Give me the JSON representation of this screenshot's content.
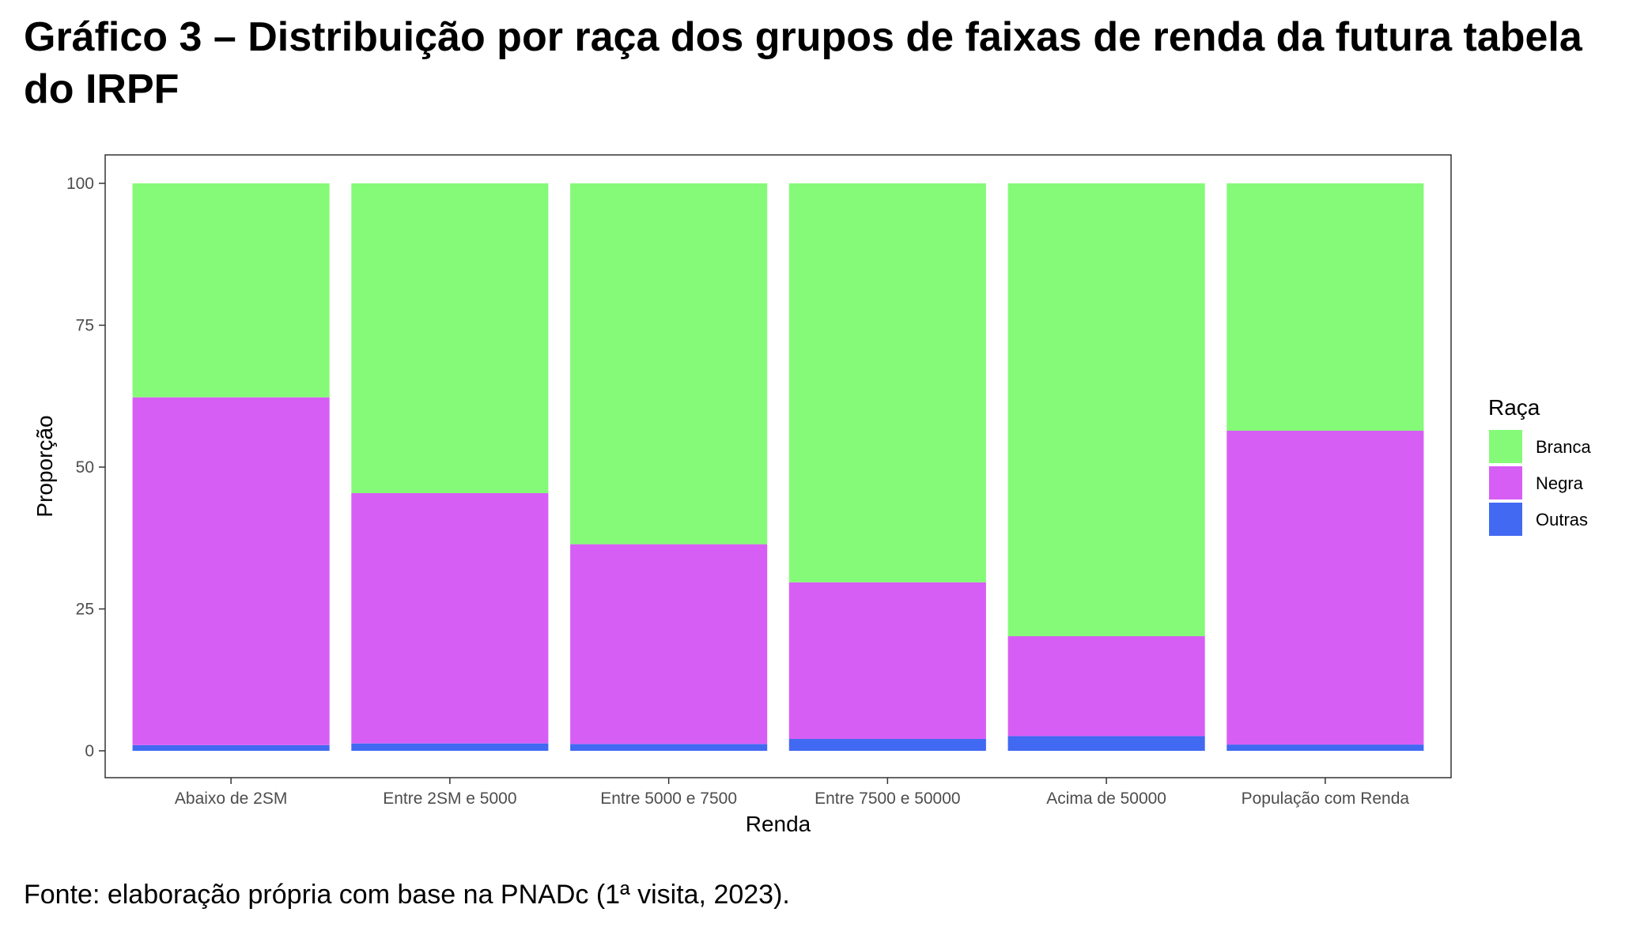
{
  "title": "Gráfico 3 – Distribuição por raça dos grupos de faixas de renda da futura tabela do IRPF",
  "source": "Fonte: elaboração própria com base na PNADc (1ª visita, 2023).",
  "colors": {
    "Branca": "#85fa78",
    "Negra": "#d75ef5",
    "Outras": "#4169f2"
  },
  "chart_data": {
    "type": "bar",
    "stacked": true,
    "categories": [
      "Abaixo de 2SM",
      "Entre 2SM e 5000",
      "Entre 5000 e 7500",
      "Entre 7500 e 50000",
      "Acima de 50000",
      "População com Renda"
    ],
    "series": [
      {
        "name": "Outras",
        "values": [
          1.0,
          1.3,
          1.2,
          2.1,
          2.6,
          1.1
        ]
      },
      {
        "name": "Negra",
        "values": [
          61.3,
          44.1,
          35.2,
          27.6,
          17.6,
          55.3
        ]
      },
      {
        "name": "Branca",
        "values": [
          37.7,
          54.6,
          63.6,
          70.3,
          79.8,
          43.6
        ]
      }
    ],
    "xlabel": "Renda",
    "ylabel": "Proporção",
    "ylim": [
      0,
      100
    ],
    "yticks": [
      0,
      25,
      50,
      75,
      100
    ],
    "legend": {
      "title": "Raça",
      "entries": [
        "Branca",
        "Negra",
        "Outras"
      ],
      "position": "right"
    },
    "grid": false
  }
}
